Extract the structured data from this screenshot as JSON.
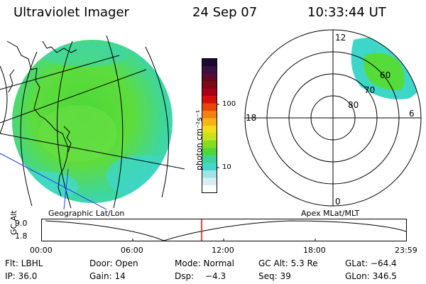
{
  "header": {
    "instrument": "Ultraviolet Imager",
    "date": "24 Sep 07",
    "time": "10:33:44 UT"
  },
  "colorbar": {
    "unit_label": "photon cm⁻²s⁻¹",
    "tick_labels": [
      "100",
      "10"
    ],
    "colors": [
      "#1a0a2e",
      "#3a1040",
      "#5a0a2a",
      "#7a0a14",
      "#a8001a",
      "#d4100e",
      "#e84608",
      "#f48010",
      "#f6b418",
      "#f2dc1c",
      "#c4e21e",
      "#86da22",
      "#4cd63e",
      "#3ed49c",
      "#44d6cc",
      "#9ee4e8",
      "#d8eef2",
      "#ffffff"
    ]
  },
  "projection_labels": {
    "left": "Geographic Lat/Lon",
    "right": "Apex MLat/MLT"
  },
  "polar_plot": {
    "mlt_labels": {
      "top": "12",
      "left": "18",
      "right": "6",
      "bottom": "0"
    },
    "lat_labels": [
      "60",
      "70",
      "80"
    ]
  },
  "altitude_plot": {
    "ylabel": "GC Alt",
    "ytick_labels": [
      "9.0",
      "1.8"
    ],
    "xtick_labels": [
      "00:00",
      "06:00",
      "12:00",
      "18:00",
      "23:59"
    ],
    "marker_color": "#ff0000"
  },
  "footer": {
    "row1": {
      "flt": "Flt: LBHL",
      "door": "Door: Open",
      "mode": "Mode: Normal",
      "gcalt": "GC Alt: 5.3 Re",
      "glat": "GLat: −64.4"
    },
    "row2": {
      "ip": "IP: 36.0",
      "gain": "Gain: 14",
      "dsp_label": "Dsp:",
      "dsp_value": "−4.3",
      "seq": "Seq: 39",
      "glon": "GLon: 346.5"
    }
  },
  "colors": {
    "aurora_green": "#57de2e",
    "aurora_cyan": "#3ed8c4",
    "coast_blue": "#1e3cff",
    "marker_red": "#ff0000"
  }
}
